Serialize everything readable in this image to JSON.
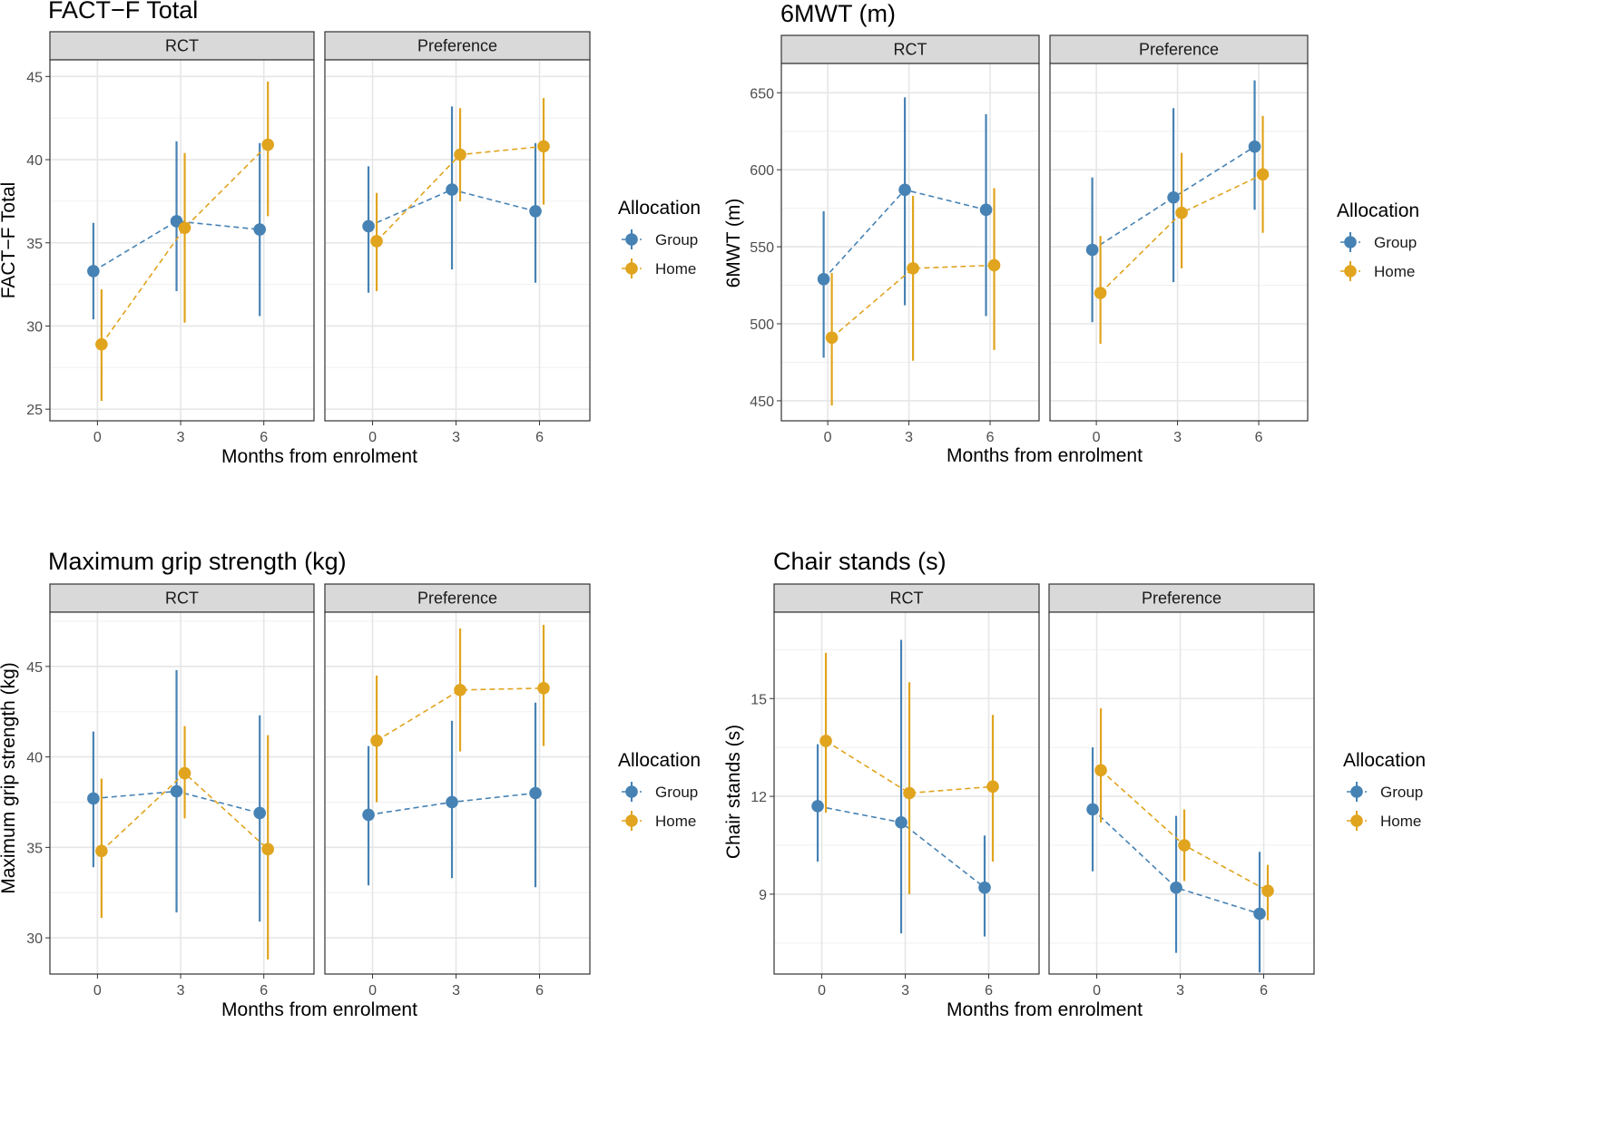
{
  "colors": {
    "group": "#4682b4",
    "home": "#e0a41e"
  },
  "chart_data": [
    {
      "type": "line",
      "title": "FACT−F Total",
      "xlabel": "Months from enrolment",
      "ylabel": "FACT−F Total",
      "facets": [
        "RCT",
        "Preference"
      ],
      "x": [
        "0",
        "3",
        "6"
      ],
      "yticks": [
        "25",
        "30",
        "35",
        "40",
        "45"
      ],
      "ylim": [
        24.3,
        46.0
      ],
      "legend": {
        "title": "Allocation",
        "entries": [
          "Group",
          "Home"
        ]
      },
      "series": [
        {
          "name": "Group",
          "facet": "RCT",
          "values": [
            33.3,
            36.3,
            35.8
          ],
          "lower": [
            30.4,
            32.1,
            30.6
          ],
          "upper": [
            36.2,
            41.1,
            41.0
          ]
        },
        {
          "name": "Home",
          "facet": "RCT",
          "values": [
            28.9,
            35.9,
            40.9
          ],
          "lower": [
            25.5,
            30.2,
            36.6
          ],
          "upper": [
            32.2,
            40.4,
            44.7
          ]
        },
        {
          "name": "Group",
          "facet": "Preference",
          "values": [
            36.0,
            38.2,
            36.9
          ],
          "lower": [
            32.0,
            33.4,
            32.6
          ],
          "upper": [
            39.6,
            43.2,
            41.0
          ]
        },
        {
          "name": "Home",
          "facet": "Preference",
          "values": [
            35.1,
            40.3,
            40.8
          ],
          "lower": [
            32.1,
            37.5,
            37.3
          ],
          "upper": [
            38.0,
            43.1,
            43.7
          ]
        }
      ]
    },
    {
      "type": "line",
      "title": "6MWT (m)",
      "xlabel": "Months from enrolment",
      "ylabel": "6MWT (m)",
      "facets": [
        "RCT",
        "Preference"
      ],
      "x": [
        "0",
        "3",
        "6"
      ],
      "yticks": [
        "450",
        "500",
        "550",
        "600",
        "650"
      ],
      "ylim": [
        437,
        669
      ],
      "legend": {
        "title": "Allocation",
        "entries": [
          "Group",
          "Home"
        ]
      },
      "series": [
        {
          "name": "Group",
          "facet": "RCT",
          "values": [
            529,
            587,
            574
          ],
          "lower": [
            478,
            512,
            505
          ],
          "upper": [
            573,
            647,
            636
          ]
        },
        {
          "name": "Home",
          "facet": "RCT",
          "values": [
            491,
            536,
            538
          ],
          "lower": [
            447,
            476,
            483
          ],
          "upper": [
            533,
            583,
            588
          ]
        },
        {
          "name": "Group",
          "facet": "Preference",
          "values": [
            548,
            582,
            615
          ],
          "lower": [
            501,
            527,
            574
          ],
          "upper": [
            595,
            640,
            658
          ]
        },
        {
          "name": "Home",
          "facet": "Preference",
          "values": [
            520,
            572,
            597
          ],
          "lower": [
            487,
            536,
            559
          ],
          "upper": [
            557,
            611,
            635
          ]
        }
      ]
    },
    {
      "type": "line",
      "title": "Maximum grip strength (kg)",
      "xlabel": "Months from enrolment",
      "ylabel": "Maximum grip strength (kg)",
      "facets": [
        "RCT",
        "Preference"
      ],
      "x": [
        "0",
        "3",
        "6"
      ],
      "yticks": [
        "30",
        "35",
        "40",
        "45"
      ],
      "ylim": [
        28.0,
        48.0
      ],
      "legend": {
        "title": "Allocation",
        "entries": [
          "Group",
          "Home"
        ]
      },
      "series": [
        {
          "name": "Group",
          "facet": "RCT",
          "values": [
            37.7,
            38.1,
            36.9
          ],
          "lower": [
            33.9,
            31.4,
            30.9
          ],
          "upper": [
            41.4,
            44.8,
            42.3
          ]
        },
        {
          "name": "Home",
          "facet": "RCT",
          "values": [
            34.8,
            39.1,
            34.9
          ],
          "lower": [
            31.1,
            36.6,
            28.8
          ],
          "upper": [
            38.8,
            41.7,
            41.2
          ]
        },
        {
          "name": "Group",
          "facet": "Preference",
          "values": [
            36.8,
            37.5,
            38.0
          ],
          "lower": [
            32.9,
            33.3,
            32.8
          ],
          "upper": [
            40.6,
            42.0,
            43.0
          ]
        },
        {
          "name": "Home",
          "facet": "Preference",
          "values": [
            40.9,
            43.7,
            43.8
          ],
          "lower": [
            37.5,
            40.3,
            40.6
          ],
          "upper": [
            44.5,
            47.1,
            47.3
          ]
        }
      ]
    },
    {
      "type": "line",
      "title": "Chair stands (s)",
      "xlabel": "Months from enrolment",
      "ylabel": "Chair stands (s)",
      "facets": [
        "RCT",
        "Preference"
      ],
      "x": [
        "0",
        "3",
        "6"
      ],
      "yticks": [
        "9",
        "12",
        "15"
      ],
      "ylim": [
        6.55,
        17.65
      ],
      "legend": {
        "title": "Allocation",
        "entries": [
          "Group",
          "Home"
        ]
      },
      "series": [
        {
          "name": "Group",
          "facet": "RCT",
          "values": [
            11.7,
            11.2,
            9.2
          ],
          "lower": [
            10.0,
            7.8,
            7.7
          ],
          "upper": [
            13.6,
            16.8,
            10.8
          ]
        },
        {
          "name": "Home",
          "facet": "RCT",
          "values": [
            13.7,
            12.1,
            12.3
          ],
          "lower": [
            11.5,
            9.0,
            10.0
          ],
          "upper": [
            16.4,
            15.5,
            14.5
          ]
        },
        {
          "name": "Group",
          "facet": "Preference",
          "values": [
            11.6,
            9.2,
            8.4
          ],
          "lower": [
            9.7,
            7.2,
            6.6
          ],
          "upper": [
            13.5,
            11.4,
            10.3
          ]
        },
        {
          "name": "Home",
          "facet": "Preference",
          "values": [
            12.8,
            10.5,
            9.1
          ],
          "lower": [
            11.2,
            9.4,
            8.2
          ],
          "upper": [
            14.7,
            11.6,
            9.9
          ]
        }
      ]
    }
  ]
}
